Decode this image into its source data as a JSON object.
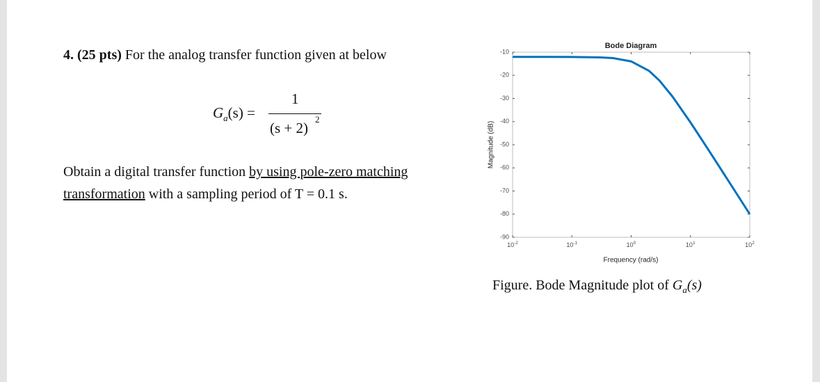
{
  "problem": {
    "number": "4. (25 pts)",
    "intro": "For the analog transfer function given at below",
    "equation": {
      "function": "G",
      "subscript": "a",
      "argument": "(s)",
      "equals": "=",
      "numerator": "1",
      "denominator": "(s + 2)",
      "power": "2"
    },
    "line1_text": "Obtain a digital transfer function",
    "line1_underlined": "by using pole-zero matching",
    "line2_underlined": "transformation",
    "line2_text": "with a sampling period of T = 0.1 s."
  },
  "figure": {
    "caption": {
      "text": "Figure. Bode Magnitude plot of",
      "function": "G",
      "subscript": "a",
      "argument": "(s)"
    }
  },
  "chart_data": {
    "type": "line",
    "title": "Bode Diagram",
    "x_label": "Frequency  (rad/s)",
    "y_label": "Magnitude (dB)",
    "x": [
      0.01,
      0.03,
      0.1,
      0.3,
      0.5,
      1,
      2,
      3,
      5,
      10,
      20,
      30,
      50,
      100
    ],
    "values": [
      -12.04,
      -12.04,
      -12.06,
      -12.24,
      -12.57,
      -13.98,
      -18.06,
      -22.28,
      -29.25,
      -40.34,
      -52.13,
      -59.12,
      -67.97,
      -80.0
    ],
    "color": "#0072bd",
    "xscale": "log",
    "grid": false,
    "xlim": [
      0.01,
      100
    ],
    "ylim": [
      -90,
      -10
    ],
    "xticks": [
      {
        "value": 0.01,
        "label": "10",
        "exponent": "-2"
      },
      {
        "value": 0.1,
        "label": "10",
        "exponent": "-1"
      },
      {
        "value": 1,
        "label": "10",
        "exponent": "0"
      },
      {
        "value": 10,
        "label": "10",
        "exponent": "1"
      },
      {
        "value": 100,
        "label": "10",
        "exponent": "2"
      }
    ],
    "yticks": [
      -90,
      -80,
      -70,
      -60,
      -50,
      -40,
      -30,
      -20,
      -10
    ]
  }
}
